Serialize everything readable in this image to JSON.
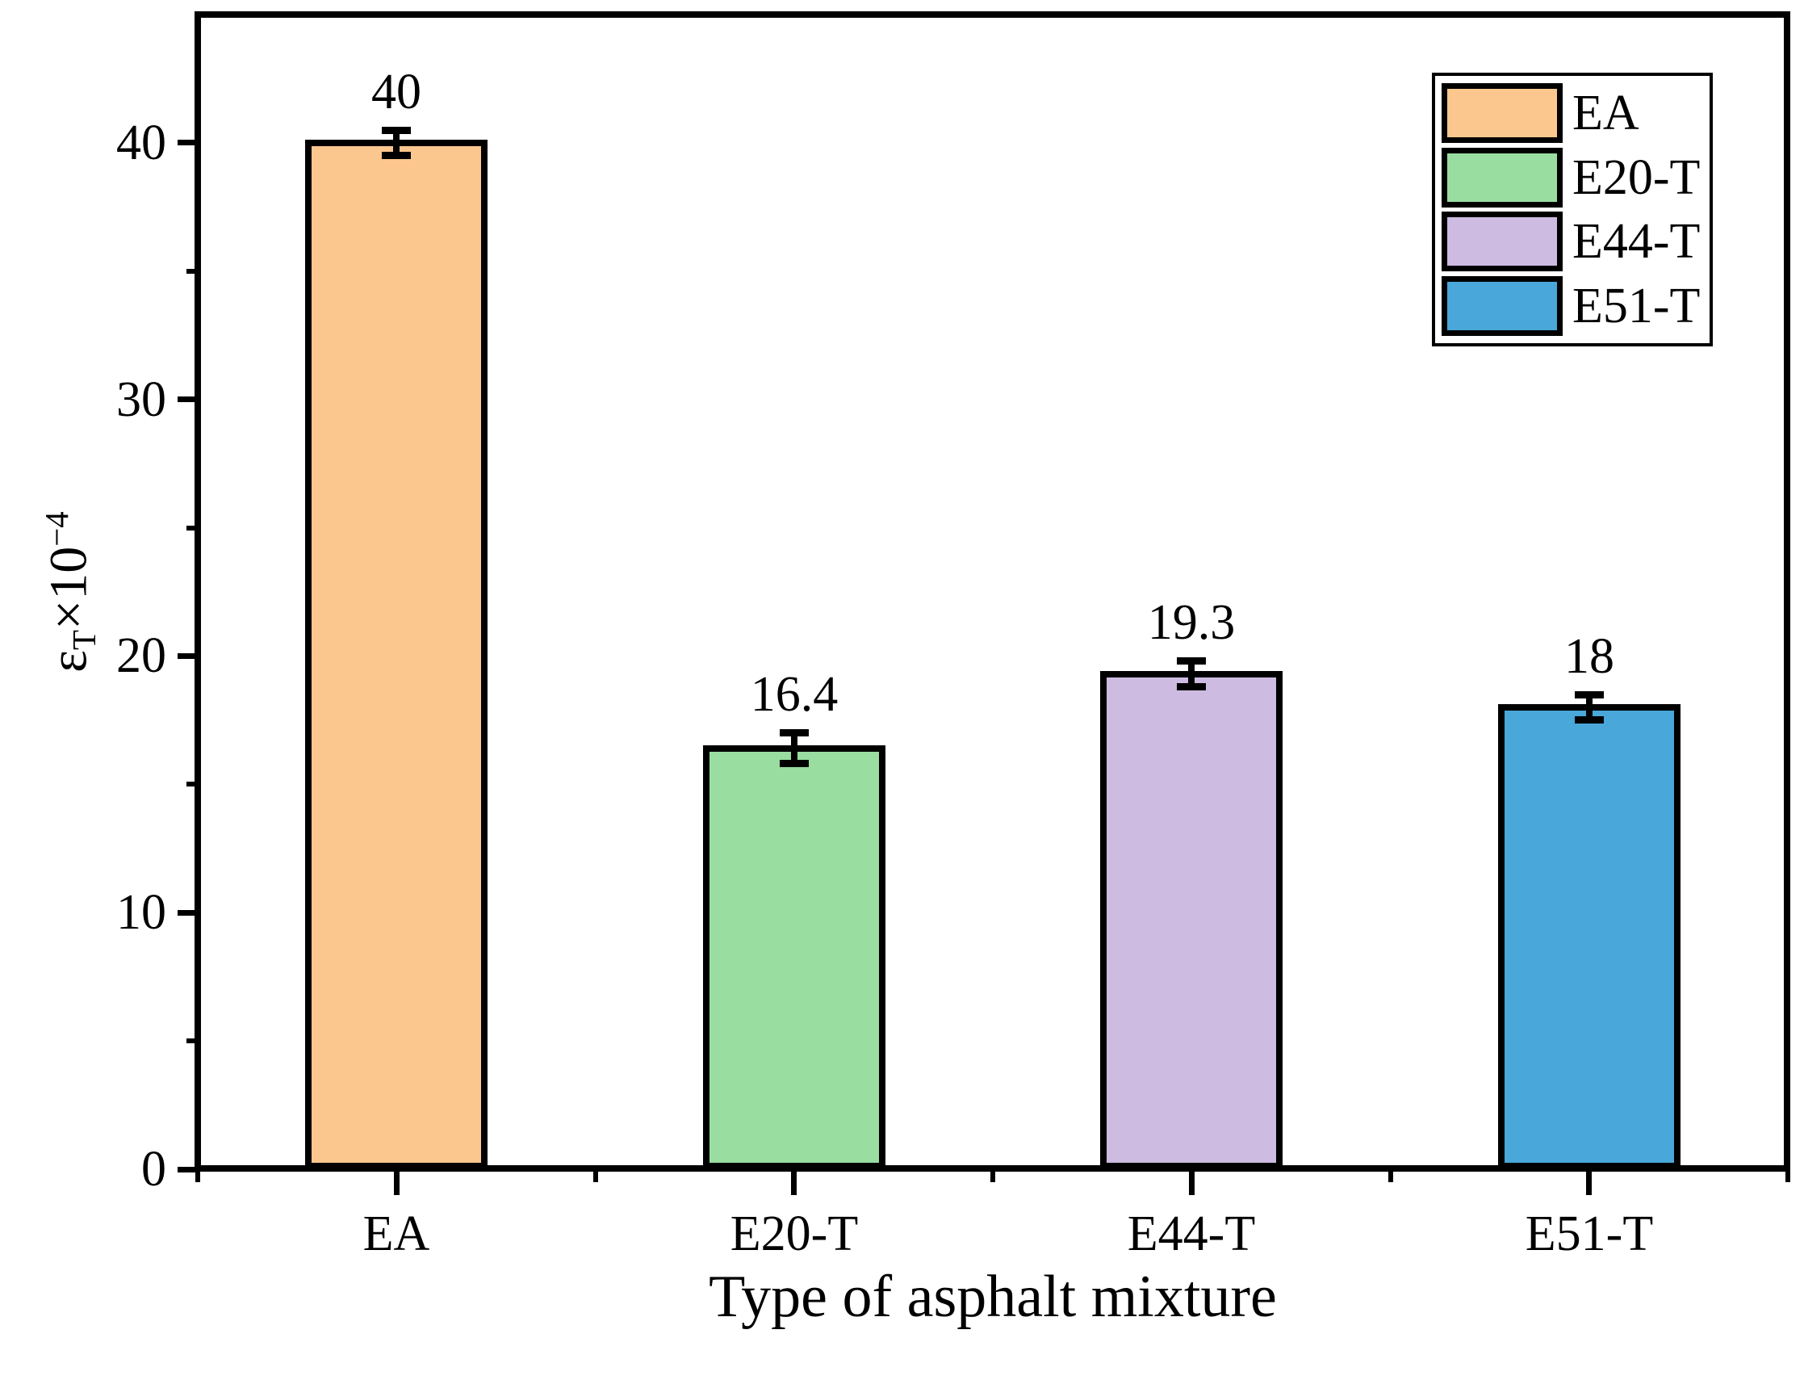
{
  "figure": {
    "background_color": "#FFFFFF",
    "axis_color": "#000000"
  },
  "chart_data": {
    "type": "bar",
    "title": "",
    "xlabel": "Type of asphalt mixture",
    "ylabel": "εT×10−4",
    "ylabel_parts": {
      "base": "ε",
      "sub": "T",
      "times": "×10",
      "sup": "−4"
    },
    "categories": [
      "EA",
      "E20-T",
      "E44-T",
      "E51-T"
    ],
    "values": [
      40,
      16.4,
      19.3,
      18
    ],
    "value_labels": [
      "40",
      "16.4",
      "19.3",
      "18"
    ],
    "errors": [
      0.5,
      0.6,
      0.5,
      0.5
    ],
    "bar_colors": [
      "#FCC68F",
      "#99DDA1",
      "#CDBBE1",
      "#49A7D9"
    ],
    "ylim": [
      0,
      45
    ],
    "y_major_ticks": [
      0,
      10,
      20,
      30,
      40
    ],
    "y_minor_ticks": [
      5,
      15,
      25,
      35
    ],
    "grid": false,
    "legend": {
      "position": "top-right",
      "entries": [
        {
          "label": "EA",
          "color": "#FCC68F"
        },
        {
          "label": "E20-T",
          "color": "#99DDA1"
        },
        {
          "label": "E44-T",
          "color": "#CDBBE1"
        },
        {
          "label": "E51-T",
          "color": "#49A7D9"
        }
      ]
    }
  }
}
